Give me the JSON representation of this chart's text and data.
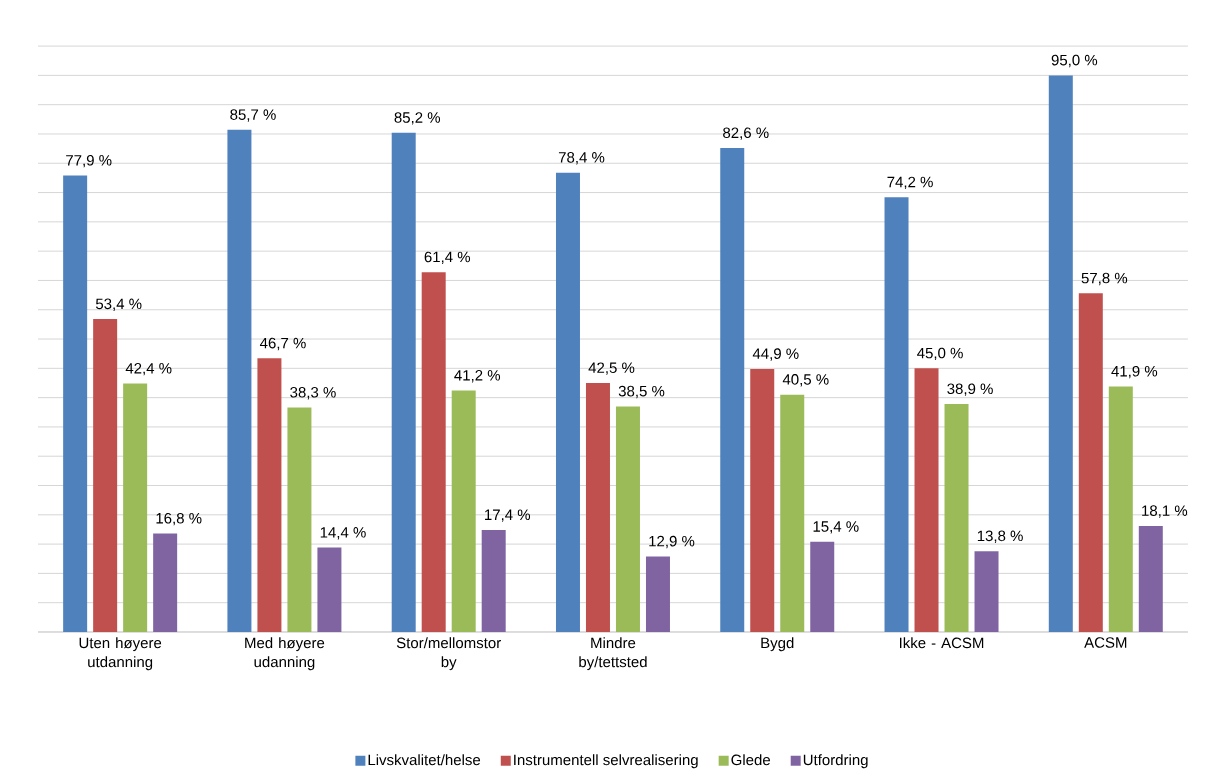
{
  "chart_data": {
    "type": "bar",
    "categories": [
      "Uten høyere utdanning",
      "Med høyere udanning",
      "Stor/mellomstor by",
      "Mindre by/tettsted",
      "Bygd",
      "Ikke - ACSM",
      "ACSM"
    ],
    "series": [
      {
        "name": "Livskvalitet/helse",
        "color": "#4f81bd",
        "values": [
          77.9,
          85.7,
          85.2,
          78.4,
          82.6,
          74.2,
          95.0
        ],
        "value_labels": [
          "77,9 %",
          "85,7 %",
          "85,2 %",
          "78,4 %",
          "82,6 %",
          "74,2 %",
          "95,0 %"
        ]
      },
      {
        "name": "Instrumentell selvrealisering",
        "color": "#c0504d",
        "values": [
          53.4,
          46.7,
          61.4,
          42.5,
          44.9,
          45.0,
          57.8
        ],
        "value_labels": [
          "53,4 %",
          "46,7 %",
          "61,4 %",
          "42,5 %",
          "44,9 %",
          "45,0 %",
          "57,8 %"
        ]
      },
      {
        "name": "Glede",
        "color": "#9bbb59",
        "values": [
          42.4,
          38.3,
          41.2,
          38.5,
          40.5,
          38.9,
          41.9
        ],
        "value_labels": [
          "42,4 %",
          "38,3 %",
          "41,2 %",
          "38,5 %",
          "40,5 %",
          "38,9 %",
          "41,9 %"
        ]
      },
      {
        "name": "Utfordring",
        "color": "#8064a2",
        "values": [
          16.8,
          14.4,
          17.4,
          12.9,
          15.4,
          13.8,
          18.1
        ],
        "value_labels": [
          "16,8 %",
          "14,4 %",
          "17,4 %",
          "12,9 %",
          "15,4 %",
          "13,8 %",
          "18,1 %"
        ]
      }
    ],
    "tick_labels": "x",
    "grid": "y",
    "legend": "bottom"
  }
}
